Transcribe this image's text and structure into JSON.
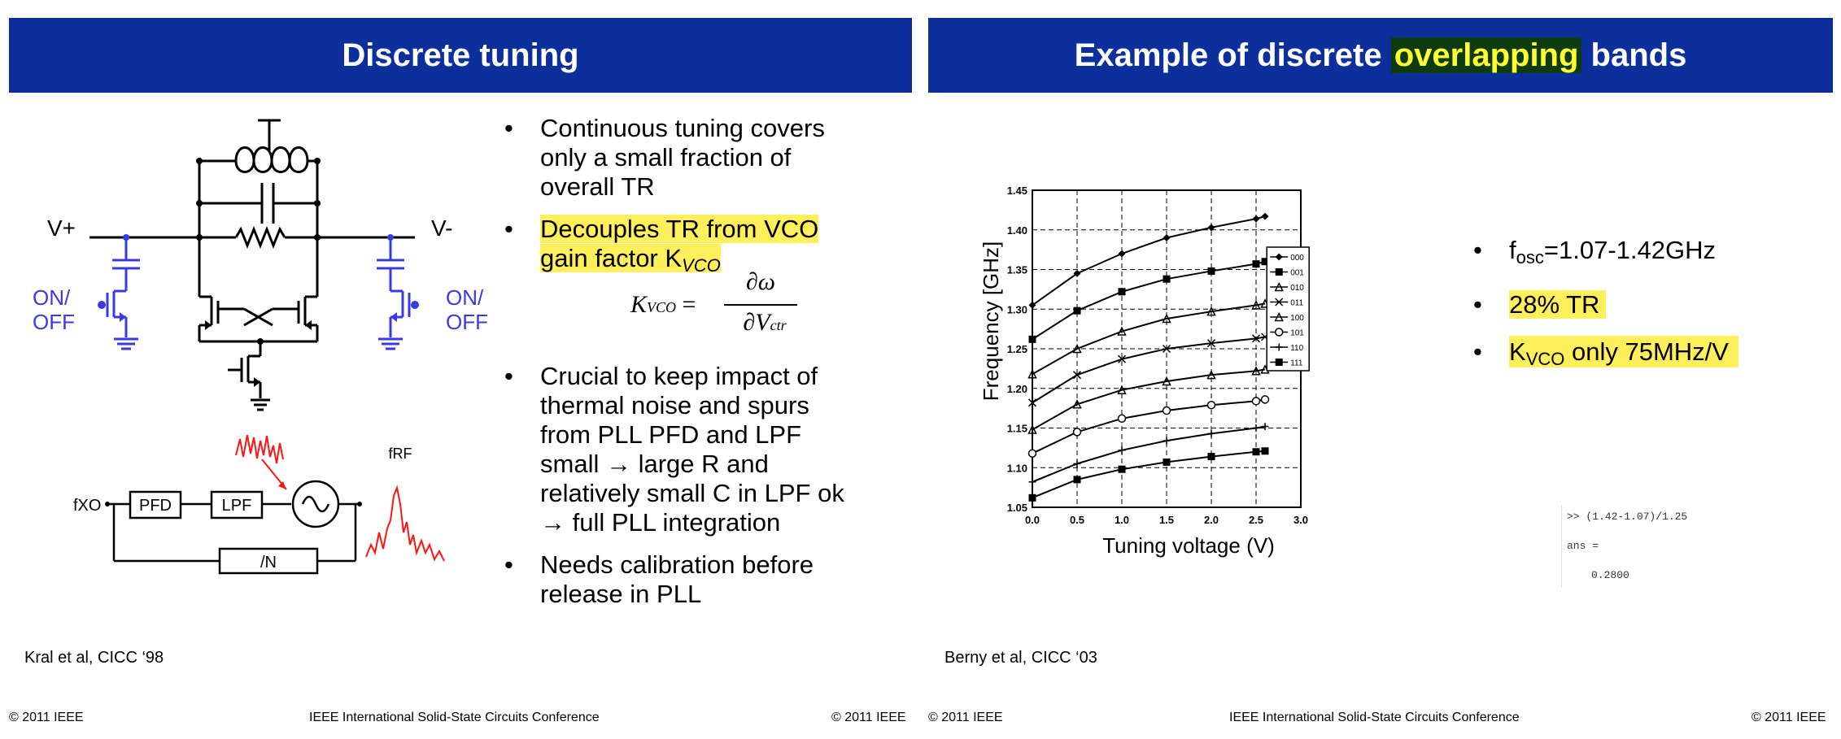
{
  "left": {
    "title": "Discrete tuning",
    "circuit_labels": {
      "v_plus": "V+",
      "v_minus": "V-",
      "on_off_left_1": "ON/",
      "on_off_left_2": "OFF",
      "on_off_right_1": "ON/",
      "on_off_right_2": "OFF",
      "fxo": "fXO",
      "pfd": "PFD",
      "lpf": "LPF",
      "div_n": "/N",
      "frf": "fRF"
    },
    "bullets": [
      {
        "lines": [
          "Continuous tuning covers",
          "only a small fraction of",
          "overall TR"
        ]
      },
      {
        "lines": [
          "Decouples TR from VCO",
          "gain factor K"
        ],
        "sub": "VCO"
      },
      {
        "lines": [
          "Crucial to keep impact of",
          "thermal noise and spurs",
          "from PLL PFD and LPF",
          "small   →   large R and",
          "relatively small C in LPF ok",
          "→ full PLL integration"
        ]
      },
      {
        "lines": [
          "Needs calibration before",
          "release in PLL"
        ]
      }
    ],
    "formula": {
      "lhs": "K",
      "lhs_sub": "VCO",
      "num": "∂ω",
      "den": "∂V",
      "den_sub": "ctr"
    },
    "citation": "Kral et al, CICC ‘98",
    "footer_left": "© 2011 IEEE",
    "footer_center": "IEEE International Solid-State Circuits Conference",
    "footer_right": "© 2011 IEEE"
  },
  "right": {
    "title_pre": "Example of discrete",
    "title_highlight": "overlapping",
    "title_post": "bands",
    "bullets": [
      {
        "pre": "f",
        "sub": "osc",
        "post": "=1.07-1.42GHz"
      },
      {
        "text": "28% TR"
      },
      {
        "pre": "K",
        "sub": "VCO",
        "post": " only 75MHz/V"
      }
    ],
    "matlab": {
      "line1": ">>  (1.42-1.07)/1.25",
      "line2": "ans =",
      "line3": "0.2800"
    },
    "citation": "Berny et al, CICC ‘03",
    "footer_left": "© 2011 IEEE",
    "footer_center": "IEEE International Solid-State Circuits Conference",
    "footer_right": "© 2011 IEEE"
  },
  "chart_data": {
    "type": "line",
    "xlabel": "Tuning voltage (V)",
    "ylabel": "Frequency [GHz]",
    "xlim": [
      0,
      3.0
    ],
    "ylim": [
      1.05,
      1.45
    ],
    "xticks": [
      "0.0",
      "0.5",
      "1.0",
      "1.5",
      "2.0",
      "2.5",
      "3.0"
    ],
    "yticks": [
      "1.05",
      "1.10",
      "1.15",
      "1.20",
      "1.25",
      "1.30",
      "1.35",
      "1.40",
      "1.45"
    ],
    "grid": true,
    "legend_position": "right",
    "x": [
      0.0,
      0.5,
      1.0,
      1.5,
      2.0,
      2.5,
      2.6
    ],
    "series": [
      {
        "name": "000",
        "values": [
          1.305,
          1.345,
          1.37,
          1.39,
          1.403,
          1.414,
          1.417
        ]
      },
      {
        "name": "001",
        "values": [
          1.262,
          1.298,
          1.322,
          1.338,
          1.348,
          1.357,
          1.36
        ]
      },
      {
        "name": "010",
        "values": [
          1.218,
          1.25,
          1.272,
          1.288,
          1.297,
          1.305,
          1.307
        ]
      },
      {
        "name": "011",
        "values": [
          1.182,
          1.217,
          1.237,
          1.25,
          1.257,
          1.263,
          1.265
        ]
      },
      {
        "name": "100",
        "values": [
          1.148,
          1.18,
          1.198,
          1.209,
          1.217,
          1.222,
          1.224
        ]
      },
      {
        "name": "101",
        "values": [
          1.118,
          1.145,
          1.162,
          1.172,
          1.179,
          1.184,
          1.186
        ]
      },
      {
        "name": "110",
        "values": [
          1.082,
          1.105,
          1.122,
          1.134,
          1.143,
          1.15,
          1.152
        ]
      },
      {
        "name": "111",
        "values": [
          1.062,
          1.085,
          1.098,
          1.107,
          1.114,
          1.12,
          1.121
        ]
      }
    ],
    "markers": [
      "diamond",
      "square",
      "triangle",
      "x",
      "triangle",
      "circle",
      "plus",
      "square"
    ]
  }
}
